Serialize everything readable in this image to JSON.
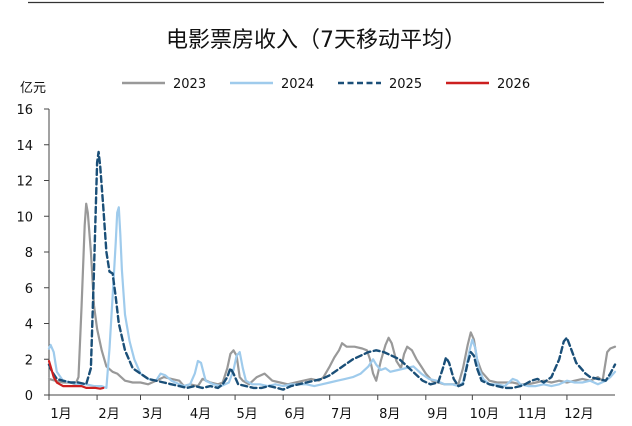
{
  "chart_data": {
    "type": "line",
    "title": "电影票房收入（7天移动平均）",
    "ylabel": "亿元",
    "xlabel": "",
    "ylim": [
      0,
      16
    ],
    "y_ticks": [
      0,
      2,
      4,
      6,
      8,
      10,
      12,
      14,
      16
    ],
    "xlim": [
      1,
      366
    ],
    "x_ticks": [
      {
        "label": "1月",
        "day": 1
      },
      {
        "label": "2月",
        "day": 32
      },
      {
        "label": "3月",
        "day": 60
      },
      {
        "label": "4月",
        "day": 91
      },
      {
        "label": "5月",
        "day": 121
      },
      {
        "label": "6月",
        "day": 152
      },
      {
        "label": "7月",
        "day": 182
      },
      {
        "label": "8月",
        "day": 213
      },
      {
        "label": "9月",
        "day": 244
      },
      {
        "label": "10月",
        "day": 274
      },
      {
        "label": "11月",
        "day": 305
      },
      {
        "label": "12月",
        "day": 335
      }
    ],
    "x_unit": "day of year",
    "grid": false,
    "legend_position": "top",
    "series": [
      {
        "name": "2023",
        "color": "#999999",
        "dash": "solid",
        "points": [
          [
            1,
            0.9
          ],
          [
            5,
            0.8
          ],
          [
            10,
            0.7
          ],
          [
            15,
            0.7
          ],
          [
            18,
            0.6
          ],
          [
            20,
            1.0
          ],
          [
            22,
            5.0
          ],
          [
            24,
            9.5
          ],
          [
            25,
            10.7
          ],
          [
            26,
            10.2
          ],
          [
            28,
            8.0
          ],
          [
            30,
            5.0
          ],
          [
            32,
            3.7
          ],
          [
            35,
            2.5
          ],
          [
            38,
            1.6
          ],
          [
            42,
            1.3
          ],
          [
            45,
            1.2
          ],
          [
            50,
            0.8
          ],
          [
            55,
            0.7
          ],
          [
            60,
            0.7
          ],
          [
            65,
            0.6
          ],
          [
            70,
            0.8
          ],
          [
            75,
            1.0
          ],
          [
            80,
            0.9
          ],
          [
            85,
            0.8
          ],
          [
            88,
            0.5
          ],
          [
            92,
            0.6
          ],
          [
            97,
            0.5
          ],
          [
            100,
            0.9
          ],
          [
            105,
            0.7
          ],
          [
            110,
            0.6
          ],
          [
            113,
            0.7
          ],
          [
            116,
            1.5
          ],
          [
            118,
            2.3
          ],
          [
            120,
            2.5
          ],
          [
            122,
            2.2
          ],
          [
            124,
            1.0
          ],
          [
            126,
            0.8
          ],
          [
            130,
            0.6
          ],
          [
            135,
            1.0
          ],
          [
            140,
            1.2
          ],
          [
            145,
            0.8
          ],
          [
            150,
            0.7
          ],
          [
            155,
            0.6
          ],
          [
            160,
            0.7
          ],
          [
            165,
            0.8
          ],
          [
            170,
            0.9
          ],
          [
            175,
            0.8
          ],
          [
            178,
            1.0
          ],
          [
            182,
            1.6
          ],
          [
            185,
            2.1
          ],
          [
            188,
            2.5
          ],
          [
            190,
            2.9
          ],
          [
            193,
            2.7
          ],
          [
            198,
            2.7
          ],
          [
            203,
            2.6
          ],
          [
            206,
            2.5
          ],
          [
            208,
            2.0
          ],
          [
            210,
            1.2
          ],
          [
            212,
            0.8
          ],
          [
            215,
            1.9
          ],
          [
            218,
            2.8
          ],
          [
            220,
            3.2
          ],
          [
            222,
            2.9
          ],
          [
            225,
            1.9
          ],
          [
            228,
            1.5
          ],
          [
            230,
            2.3
          ],
          [
            232,
            2.7
          ],
          [
            235,
            2.5
          ],
          [
            238,
            2.0
          ],
          [
            241,
            1.6
          ],
          [
            244,
            1.2
          ],
          [
            248,
            0.8
          ],
          [
            252,
            0.7
          ],
          [
            256,
            0.6
          ],
          [
            260,
            0.6
          ],
          [
            265,
            0.6
          ],
          [
            268,
            1.5
          ],
          [
            271,
            2.8
          ],
          [
            273,
            3.5
          ],
          [
            275,
            3.1
          ],
          [
            277,
            2.0
          ],
          [
            280,
            1.3
          ],
          [
            285,
            0.8
          ],
          [
            290,
            0.7
          ],
          [
            295,
            0.7
          ],
          [
            300,
            0.7
          ],
          [
            305,
            0.6
          ],
          [
            310,
            0.6
          ],
          [
            315,
            0.7
          ],
          [
            320,
            0.8
          ],
          [
            325,
            0.7
          ],
          [
            330,
            0.8
          ],
          [
            335,
            0.7
          ],
          [
            340,
            0.8
          ],
          [
            345,
            0.9
          ],
          [
            350,
            0.8
          ],
          [
            355,
            1.0
          ],
          [
            358,
            0.8
          ],
          [
            361,
            2.4
          ],
          [
            363,
            2.6
          ],
          [
            366,
            2.7
          ]
        ]
      },
      {
        "name": "2024",
        "color": "#9fcbec",
        "dash": "solid",
        "points": [
          [
            1,
            2.6
          ],
          [
            2,
            2.8
          ],
          [
            4,
            2.4
          ],
          [
            6,
            1.3
          ],
          [
            10,
            0.8
          ],
          [
            15,
            0.7
          ],
          [
            20,
            0.6
          ],
          [
            25,
            0.6
          ],
          [
            30,
            0.5
          ],
          [
            35,
            0.5
          ],
          [
            38,
            0.4
          ],
          [
            40,
            2.6
          ],
          [
            42,
            5.5
          ],
          [
            44,
            8.5
          ],
          [
            45,
            10.2
          ],
          [
            46,
            10.5
          ],
          [
            47,
            9.0
          ],
          [
            48,
            7.0
          ],
          [
            50,
            4.5
          ],
          [
            53,
            3.0
          ],
          [
            56,
            2.0
          ],
          [
            60,
            1.2
          ],
          [
            65,
            0.9
          ],
          [
            70,
            0.8
          ],
          [
            73,
            1.2
          ],
          [
            76,
            1.1
          ],
          [
            80,
            0.8
          ],
          [
            85,
            0.6
          ],
          [
            88,
            0.5
          ],
          [
            92,
            0.6
          ],
          [
            95,
            1.2
          ],
          [
            97,
            1.9
          ],
          [
            99,
            1.8
          ],
          [
            102,
            0.8
          ],
          [
            107,
            0.6
          ],
          [
            112,
            0.5
          ],
          [
            117,
            0.7
          ],
          [
            120,
            1.4
          ],
          [
            122,
            2.2
          ],
          [
            124,
            2.4
          ],
          [
            126,
            1.5
          ],
          [
            128,
            0.8
          ],
          [
            132,
            0.6
          ],
          [
            137,
            0.6
          ],
          [
            142,
            0.5
          ],
          [
            147,
            0.6
          ],
          [
            152,
            0.5
          ],
          [
            157,
            0.6
          ],
          [
            162,
            0.6
          ],
          [
            167,
            0.6
          ],
          [
            172,
            0.5
          ],
          [
            177,
            0.6
          ],
          [
            182,
            0.7
          ],
          [
            187,
            0.8
          ],
          [
            192,
            0.9
          ],
          [
            197,
            1.0
          ],
          [
            202,
            1.2
          ],
          [
            207,
            1.6
          ],
          [
            210,
            2.0
          ],
          [
            212,
            1.7
          ],
          [
            215,
            1.4
          ],
          [
            218,
            1.5
          ],
          [
            221,
            1.3
          ],
          [
            226,
            1.4
          ],
          [
            231,
            1.5
          ],
          [
            236,
            1.6
          ],
          [
            241,
            1.2
          ],
          [
            246,
            0.9
          ],
          [
            251,
            0.8
          ],
          [
            256,
            0.6
          ],
          [
            261,
            0.6
          ],
          [
            265,
            0.5
          ],
          [
            268,
            0.7
          ],
          [
            270,
            1.5
          ],
          [
            272,
            2.4
          ],
          [
            274,
            3.1
          ],
          [
            276,
            2.6
          ],
          [
            278,
            1.5
          ],
          [
            281,
            0.9
          ],
          [
            285,
            0.6
          ],
          [
            290,
            0.6
          ],
          [
            295,
            0.5
          ],
          [
            300,
            0.9
          ],
          [
            303,
            0.8
          ],
          [
            305,
            0.6
          ],
          [
            310,
            0.5
          ],
          [
            315,
            0.5
          ],
          [
            320,
            0.6
          ],
          [
            325,
            0.5
          ],
          [
            330,
            0.6
          ],
          [
            335,
            0.8
          ],
          [
            340,
            0.7
          ],
          [
            345,
            0.7
          ],
          [
            350,
            0.8
          ],
          [
            355,
            0.6
          ],
          [
            360,
            0.8
          ],
          [
            363,
            1.0
          ],
          [
            366,
            1.3
          ]
        ]
      },
      {
        "name": "2025",
        "color": "#1a4f78",
        "dash": "dashed",
        "points": [
          [
            1,
            1.7
          ],
          [
            3,
            1.3
          ],
          [
            6,
            0.9
          ],
          [
            10,
            0.8
          ],
          [
            15,
            0.7
          ],
          [
            20,
            0.7
          ],
          [
            25,
            0.6
          ],
          [
            28,
            1.5
          ],
          [
            30,
            7.0
          ],
          [
            32,
            13.0
          ],
          [
            33,
            13.6
          ],
          [
            34,
            12.8
          ],
          [
            36,
            10.5
          ],
          [
            38,
            8.0
          ],
          [
            40,
            6.9
          ],
          [
            42,
            6.8
          ],
          [
            44,
            5.5
          ],
          [
            46,
            4.0
          ],
          [
            50,
            2.5
          ],
          [
            55,
            1.5
          ],
          [
            60,
            1.2
          ],
          [
            65,
            0.9
          ],
          [
            70,
            0.8
          ],
          [
            75,
            0.7
          ],
          [
            80,
            0.6
          ],
          [
            85,
            0.5
          ],
          [
            90,
            0.4
          ],
          [
            95,
            0.5
          ],
          [
            100,
            0.4
          ],
          [
            105,
            0.5
          ],
          [
            110,
            0.4
          ],
          [
            113,
            0.6
          ],
          [
            116,
            1.0
          ],
          [
            118,
            1.5
          ],
          [
            120,
            1.2
          ],
          [
            123,
            0.6
          ],
          [
            128,
            0.5
          ],
          [
            133,
            0.4
          ],
          [
            138,
            0.4
          ],
          [
            143,
            0.5
          ],
          [
            148,
            0.4
          ],
          [
            152,
            0.3
          ],
          [
            157,
            0.5
          ],
          [
            162,
            0.6
          ],
          [
            167,
            0.7
          ],
          [
            172,
            0.8
          ],
          [
            177,
            0.9
          ],
          [
            182,
            1.1
          ],
          [
            187,
            1.4
          ],
          [
            192,
            1.7
          ],
          [
            197,
            2.0
          ],
          [
            202,
            2.2
          ],
          [
            207,
            2.4
          ],
          [
            212,
            2.5
          ],
          [
            217,
            2.4
          ],
          [
            222,
            2.2
          ],
          [
            227,
            2.0
          ],
          [
            232,
            1.6
          ],
          [
            237,
            1.2
          ],
          [
            242,
            0.8
          ],
          [
            247,
            0.6
          ],
          [
            252,
            0.7
          ],
          [
            255,
            1.5
          ],
          [
            257,
            2.1
          ],
          [
            259,
            1.8
          ],
          [
            262,
            0.9
          ],
          [
            265,
            0.5
          ],
          [
            268,
            0.6
          ],
          [
            271,
            1.8
          ],
          [
            273,
            2.4
          ],
          [
            275,
            2.2
          ],
          [
            277,
            1.5
          ],
          [
            280,
            0.8
          ],
          [
            285,
            0.6
          ],
          [
            290,
            0.5
          ],
          [
            295,
            0.4
          ],
          [
            300,
            0.4
          ],
          [
            305,
            0.5
          ],
          [
            308,
            0.6
          ],
          [
            312,
            0.8
          ],
          [
            316,
            0.9
          ],
          [
            320,
            0.7
          ],
          [
            325,
            1.0
          ],
          [
            330,
            2.0
          ],
          [
            333,
            3.0
          ],
          [
            335,
            3.2
          ],
          [
            338,
            2.5
          ],
          [
            341,
            1.8
          ],
          [
            344,
            1.5
          ],
          [
            347,
            1.2
          ],
          [
            350,
            1.0
          ],
          [
            355,
            0.9
          ],
          [
            360,
            0.8
          ],
          [
            363,
            1.2
          ],
          [
            366,
            1.7
          ]
        ]
      },
      {
        "name": "2026",
        "color": "#cc1f1f",
        "dash": "solid",
        "points": [
          [
            1,
            1.9
          ],
          [
            2,
            1.6
          ],
          [
            4,
            1.0
          ],
          [
            6,
            0.7
          ],
          [
            8,
            0.6
          ],
          [
            10,
            0.5
          ],
          [
            13,
            0.5
          ],
          [
            16,
            0.5
          ],
          [
            19,
            0.5
          ],
          [
            22,
            0.5
          ],
          [
            25,
            0.4
          ],
          [
            28,
            0.4
          ],
          [
            31,
            0.4
          ],
          [
            34,
            0.35
          ],
          [
            36,
            0.4
          ]
        ]
      }
    ]
  }
}
